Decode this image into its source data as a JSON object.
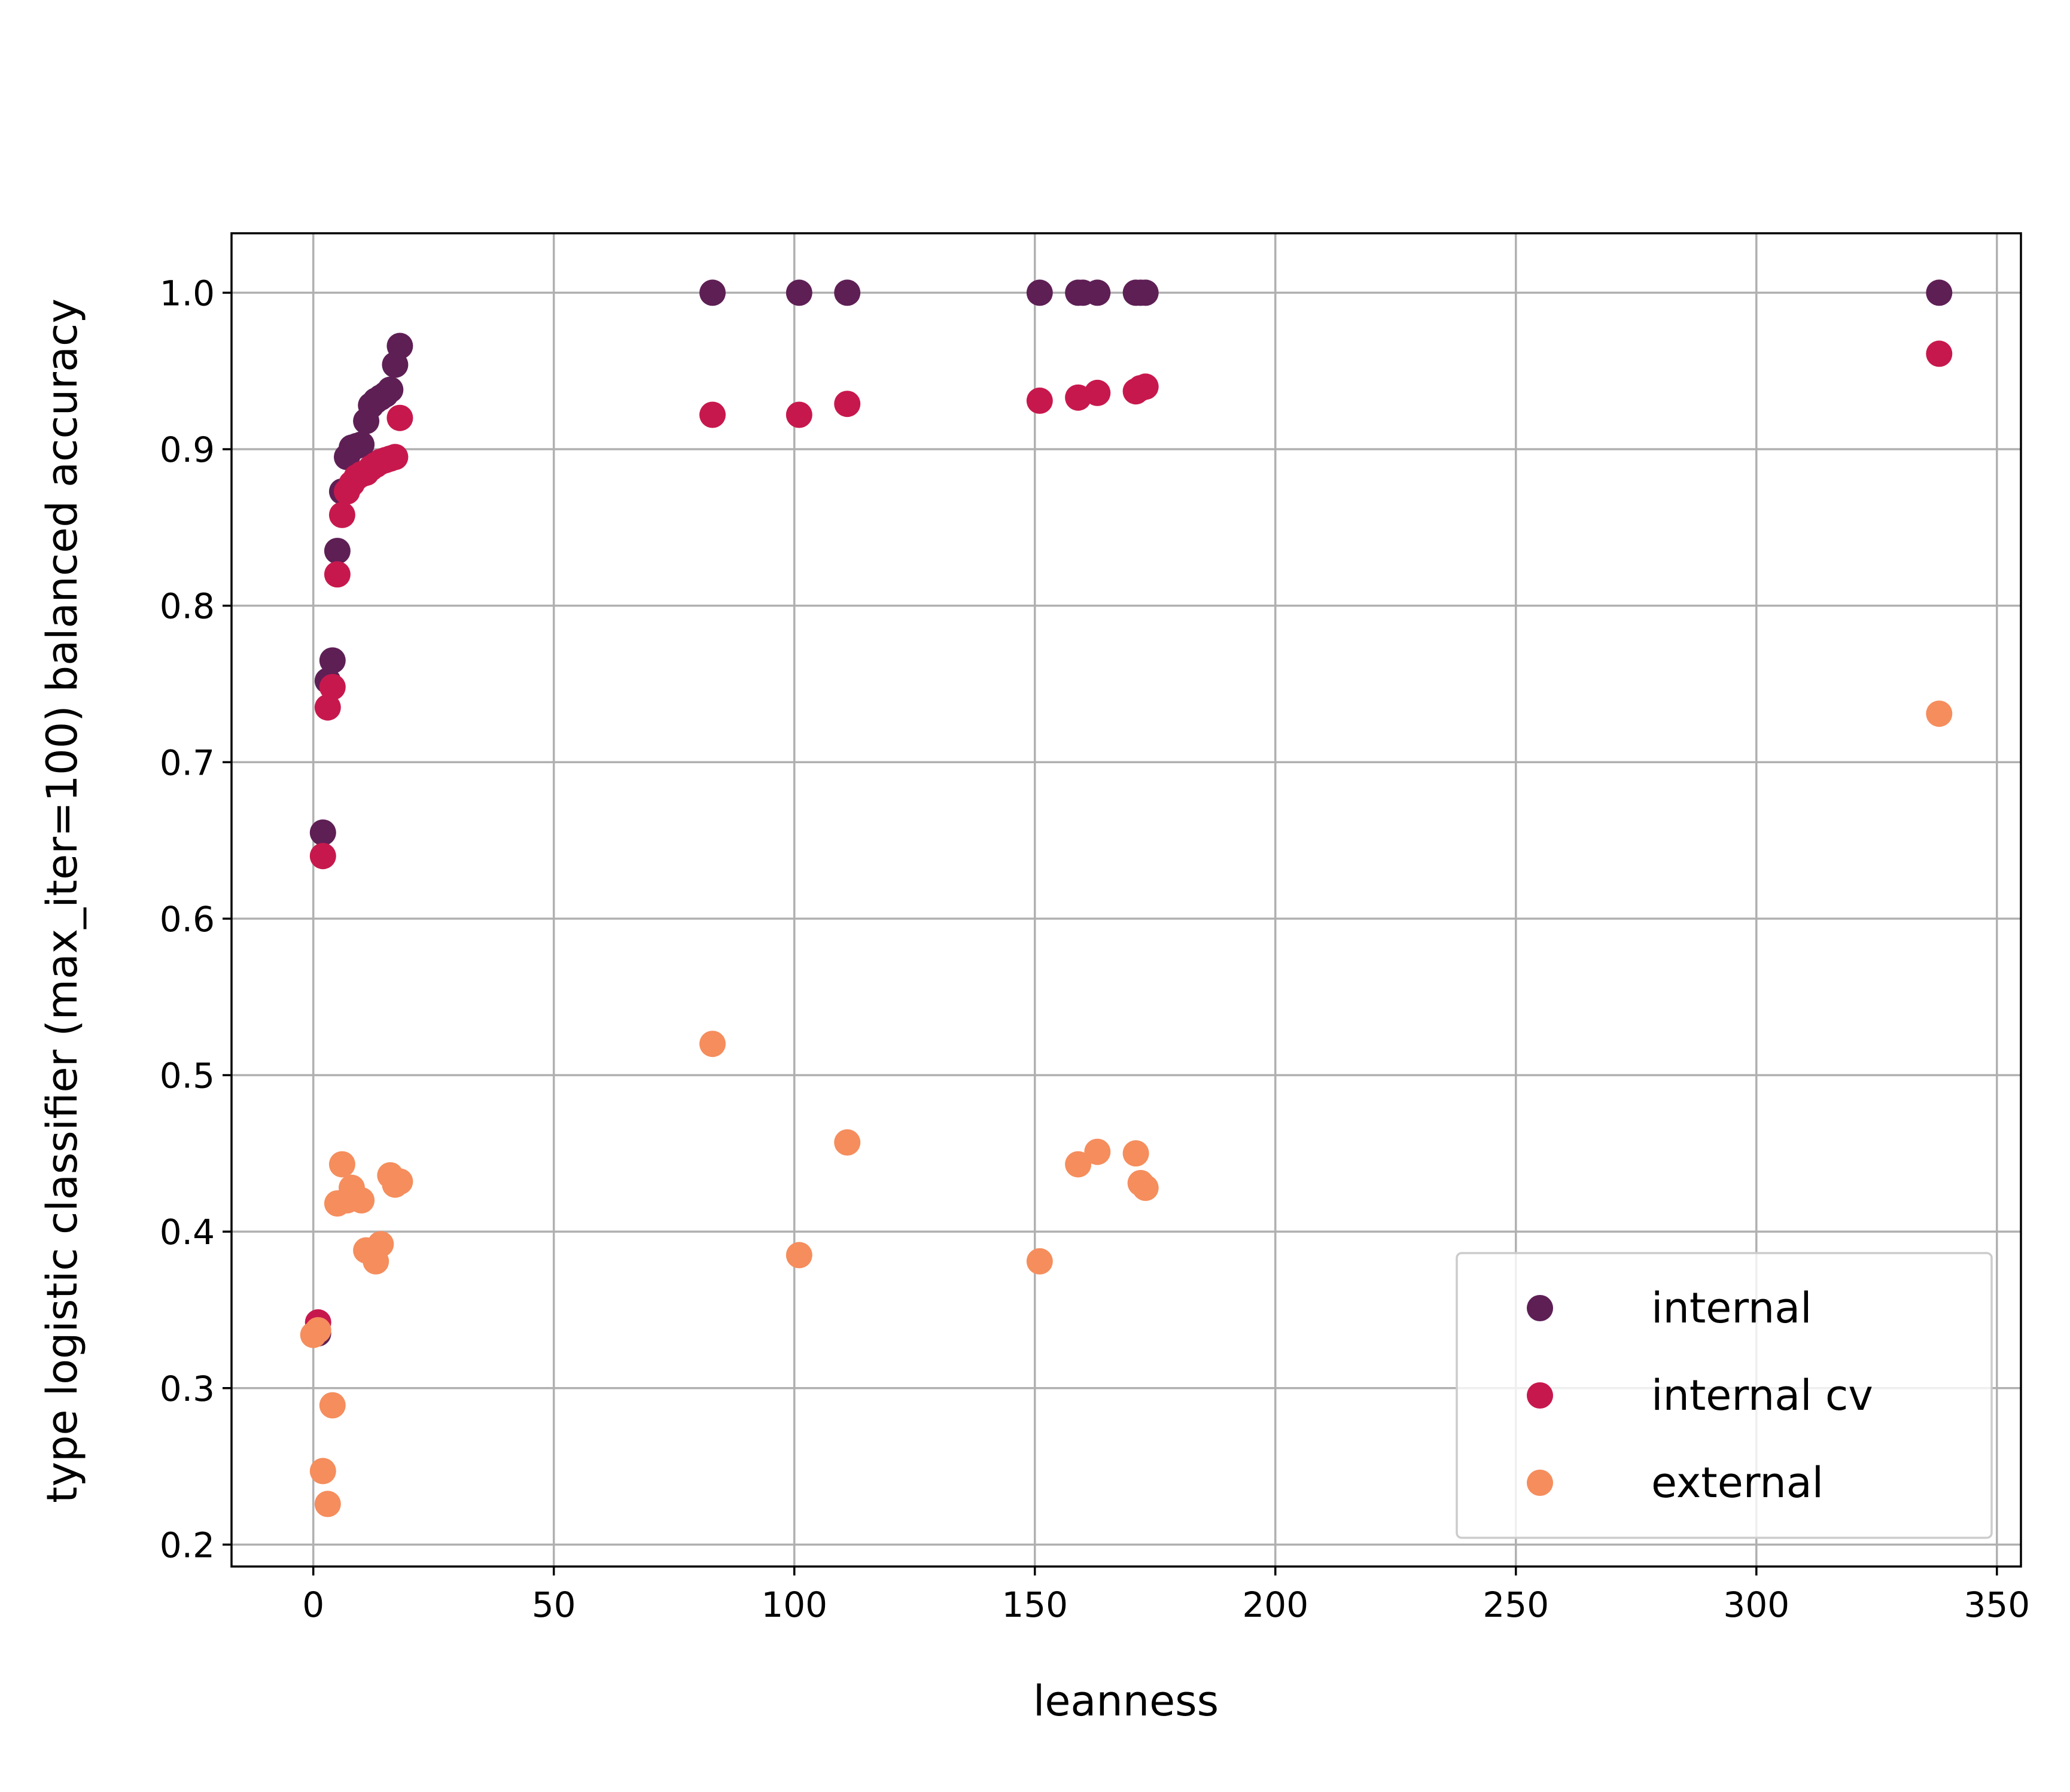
{
  "chart_data": {
    "type": "scatter",
    "xlabel": "leanness",
    "ylabel": "type logistic classifier (max_iter=100) balanced accuracy",
    "xlim": [
      -17,
      355
    ],
    "ylim": [
      0.186,
      1.038
    ],
    "xticks": [
      0,
      50,
      100,
      150,
      200,
      250,
      300,
      350
    ],
    "yticks": [
      0.2,
      0.3,
      0.4,
      0.5,
      0.6,
      0.7,
      0.8,
      0.9,
      1.0
    ],
    "grid": true,
    "legend_position": "lower-right",
    "series": [
      {
        "name": "internal",
        "color": "#5e1f55",
        "points": [
          [
            1,
            0.335
          ],
          [
            2,
            0.655
          ],
          [
            3,
            0.752
          ],
          [
            4,
            0.765
          ],
          [
            5,
            0.835
          ],
          [
            6,
            0.873
          ],
          [
            7,
            0.895
          ],
          [
            8,
            0.901
          ],
          [
            9,
            0.902
          ],
          [
            10,
            0.903
          ],
          [
            11,
            0.918
          ],
          [
            12,
            0.928
          ],
          [
            13,
            0.931
          ],
          [
            14,
            0.933
          ],
          [
            15,
            0.935
          ],
          [
            16,
            0.938
          ],
          [
            17,
            0.954
          ],
          [
            18,
            0.966
          ],
          [
            83,
            1.0
          ],
          [
            101,
            1.0
          ],
          [
            111,
            1.0
          ],
          [
            151,
            1.0
          ],
          [
            159,
            1.0
          ],
          [
            160,
            1.0
          ],
          [
            163,
            1.0
          ],
          [
            171,
            1.0
          ],
          [
            172,
            1.0
          ],
          [
            173,
            1.0
          ],
          [
            338,
            1.0
          ]
        ]
      },
      {
        "name": "internal cv",
        "color": "#c7184d",
        "points": [
          [
            1,
            0.342
          ],
          [
            2,
            0.64
          ],
          [
            3,
            0.735
          ],
          [
            4,
            0.748
          ],
          [
            5,
            0.82
          ],
          [
            6,
            0.858
          ],
          [
            7,
            0.873
          ],
          [
            8,
            0.878
          ],
          [
            9,
            0.882
          ],
          [
            10,
            0.884
          ],
          [
            11,
            0.885
          ],
          [
            12,
            0.888
          ],
          [
            13,
            0.89
          ],
          [
            14,
            0.892
          ],
          [
            15,
            0.893
          ],
          [
            16,
            0.894
          ],
          [
            17,
            0.895
          ],
          [
            18,
            0.92
          ],
          [
            83,
            0.922
          ],
          [
            101,
            0.922
          ],
          [
            111,
            0.929
          ],
          [
            151,
            0.931
          ],
          [
            159,
            0.933
          ],
          [
            163,
            0.936
          ],
          [
            171,
            0.937
          ],
          [
            172,
            0.939
          ],
          [
            173,
            0.94
          ],
          [
            338,
            0.961
          ]
        ]
      },
      {
        "name": "external",
        "color": "#f58d5d",
        "points": [
          [
            0,
            0.334
          ],
          [
            1,
            0.337
          ],
          [
            2,
            0.247
          ],
          [
            3,
            0.226
          ],
          [
            4,
            0.289
          ],
          [
            5,
            0.418
          ],
          [
            6,
            0.443
          ],
          [
            7,
            0.42
          ],
          [
            8,
            0.428
          ],
          [
            10,
            0.42
          ],
          [
            11,
            0.388
          ],
          [
            13,
            0.381
          ],
          [
            14,
            0.392
          ],
          [
            16,
            0.436
          ],
          [
            17,
            0.43
          ],
          [
            18,
            0.432
          ],
          [
            83,
            0.52
          ],
          [
            101,
            0.385
          ],
          [
            111,
            0.457
          ],
          [
            151,
            0.381
          ],
          [
            159,
            0.443
          ],
          [
            163,
            0.451
          ],
          [
            171,
            0.45
          ],
          [
            172,
            0.431
          ],
          [
            173,
            0.428
          ],
          [
            338,
            0.731
          ]
        ]
      }
    ]
  }
}
